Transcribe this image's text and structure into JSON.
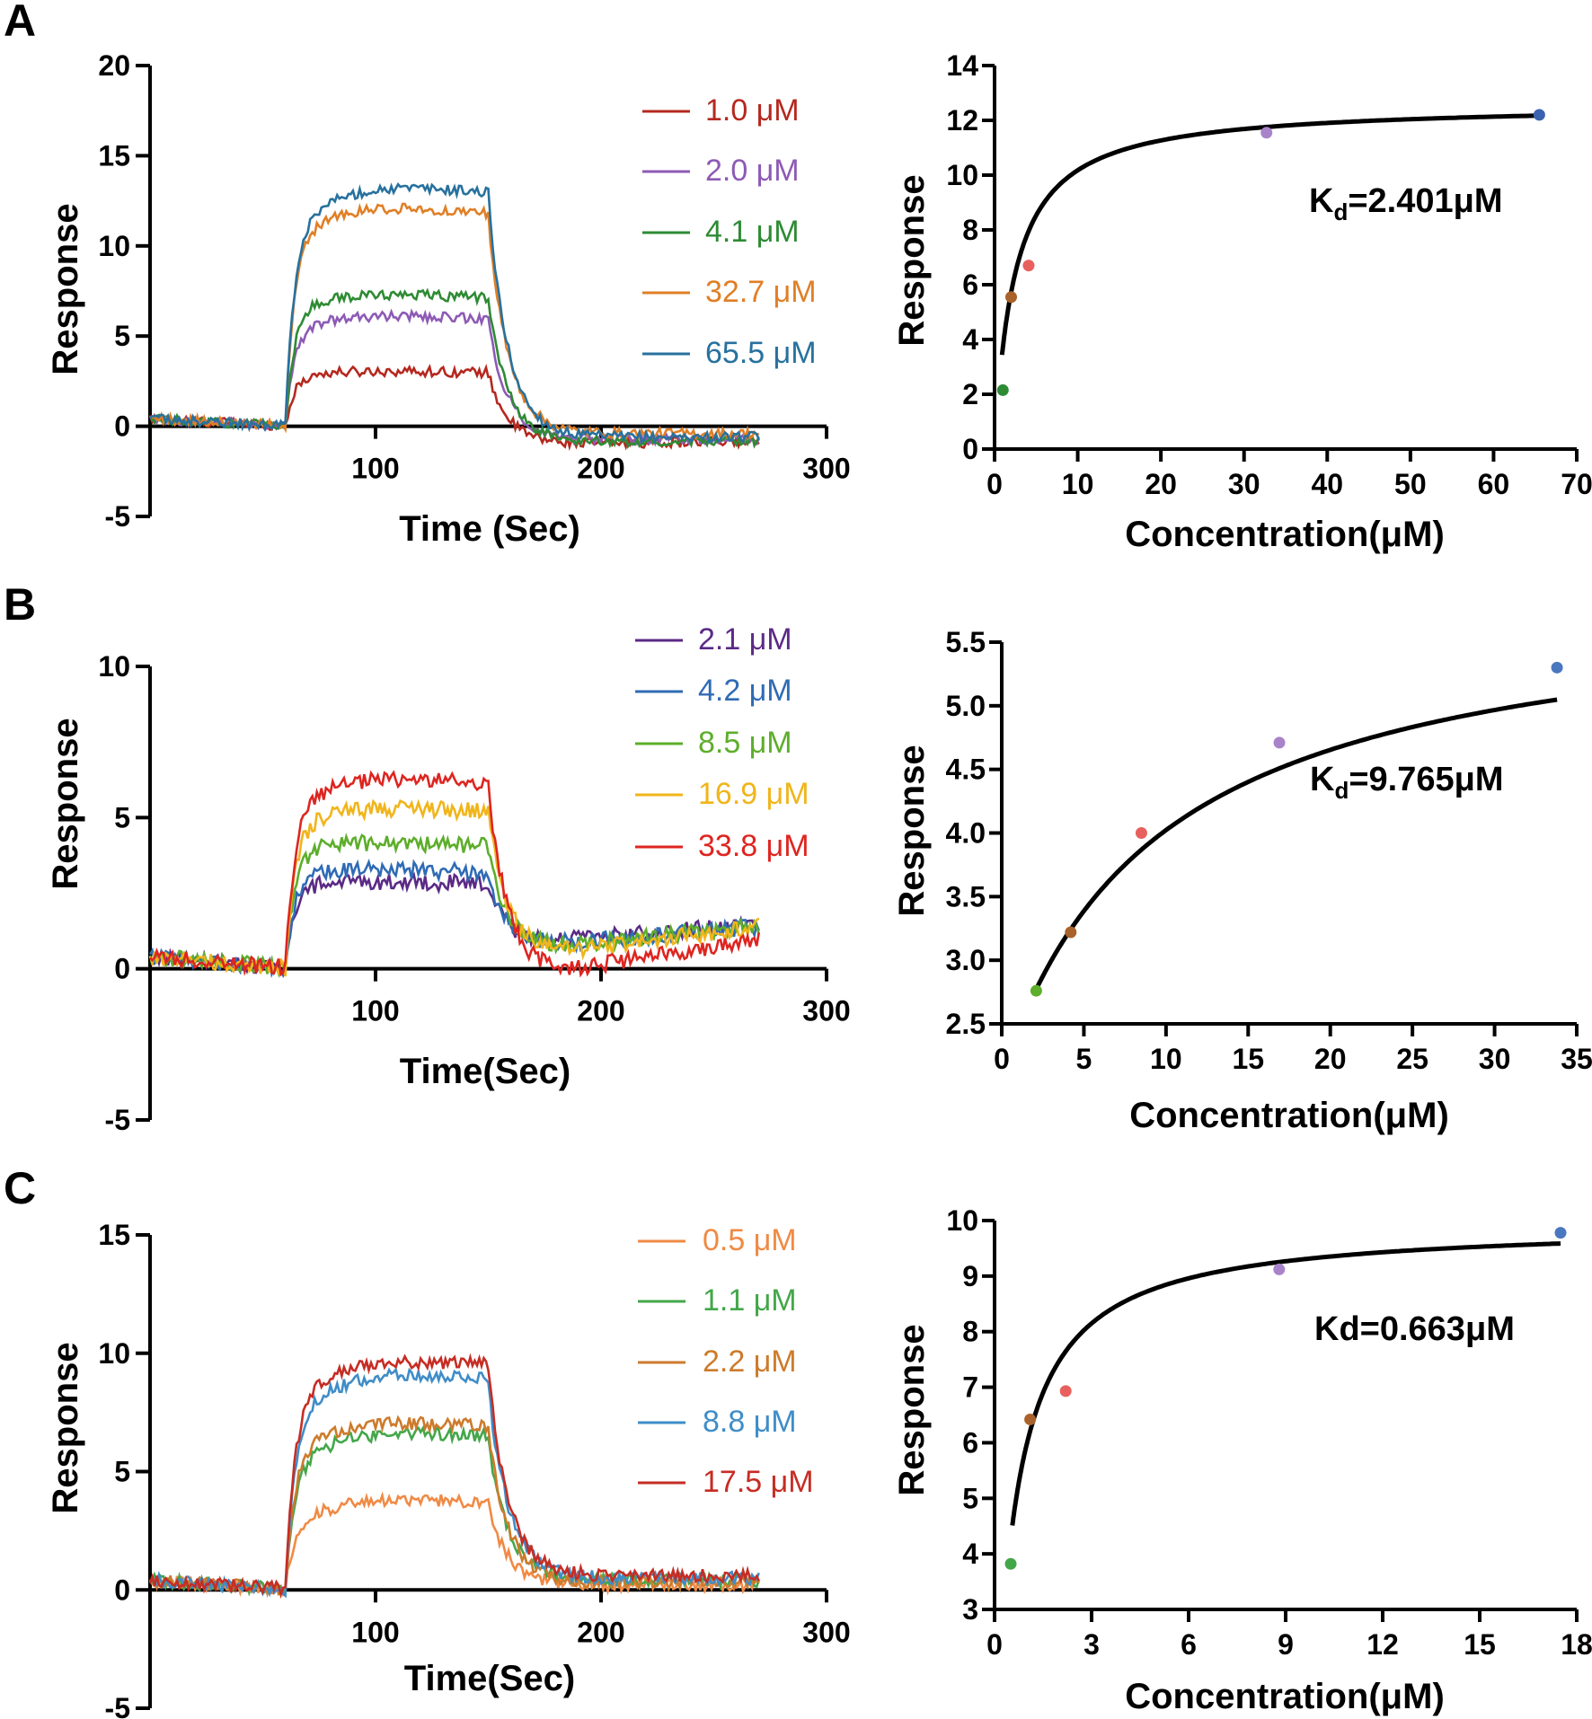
{
  "chart_data": [
    {
      "panel": "A",
      "sensorgram": {
        "type": "line",
        "xlabel": "Time (Sec)",
        "ylabel": "Response",
        "xlim": [
          0,
          300
        ],
        "ylim": [
          -5,
          20
        ],
        "xticks": [
          100,
          200,
          300
        ],
        "yticks": [
          -5,
          0,
          5,
          10,
          15,
          20
        ],
        "legend_position": "top-right",
        "injection": {
          "start": 60,
          "end": 150,
          "stop": 270
        },
        "series": [
          {
            "name": "1.0 μM",
            "color": "#b5281f",
            "plateau": 2.8,
            "peak": 3.1,
            "post": -1.0,
            "drift": 0.15
          },
          {
            "name": "2.0 μM",
            "color": "#8d5ab5",
            "plateau": 5.4,
            "peak": 6.2,
            "post": -0.8,
            "drift": 0.1
          },
          {
            "name": "4.1 μM",
            "color": "#2e8b34",
            "plateau": 6.6,
            "peak": 7.4,
            "post": -0.9,
            "drift": 0.1
          },
          {
            "name": "32.7 μM",
            "color": "#e07f26",
            "plateau": 10.5,
            "peak": 12.3,
            "post": -0.4,
            "drift": 0.0
          },
          {
            "name": "65.5 μM",
            "color": "#27719e",
            "plateau": 11.0,
            "peak": 13.5,
            "post": -0.6,
            "drift": 0.0
          }
        ]
      },
      "fit": {
        "type": "scatter",
        "xlabel": "Concentration(μM)",
        "ylabel": "Response",
        "xlim": [
          0,
          70
        ],
        "ylim": [
          0,
          14
        ],
        "xticks": [
          0,
          10,
          20,
          30,
          40,
          50,
          60,
          70
        ],
        "yticks": [
          0,
          2,
          4,
          6,
          8,
          10,
          12,
          14
        ],
        "points": [
          {
            "x": 1.0,
            "y": 2.15,
            "color": "#2e8b34"
          },
          {
            "x": 2.0,
            "y": 5.55,
            "color": "#a9622b"
          },
          {
            "x": 4.1,
            "y": 6.7,
            "color": "#e8605d"
          },
          {
            "x": 32.7,
            "y": 11.55,
            "color": "#a983c9"
          },
          {
            "x": 65.5,
            "y": 12.2,
            "color": "#3b62b0"
          }
        ],
        "curve": {
          "model": "one-site",
          "Bmax": 12.62,
          "Kd": 2.401,
          "x_from": 0.9,
          "x_to": 65.5
        },
        "annotation": {
          "main": "K",
          "sub": "d",
          "tail": "=2.401μM"
        }
      }
    },
    {
      "panel": "B",
      "sensorgram": {
        "type": "line",
        "xlabel": "Time(Sec)",
        "ylabel": "Response",
        "xlim": [
          0,
          300
        ],
        "ylim": [
          -5,
          10
        ],
        "xticks": [
          100,
          200,
          300
        ],
        "yticks": [
          -5,
          0,
          5,
          10
        ],
        "legend_position": "top-right",
        "injection": {
          "start": 60,
          "end": 150,
          "stop": 270
        },
        "series": [
          {
            "name": "2.1 μM",
            "color": "#5b2a86",
            "plateau": 2.8,
            "peak": 2.9,
            "post": 0.7,
            "drift": 0.8
          },
          {
            "name": "4.2 μM",
            "color": "#2f6bb5",
            "plateau": 3.1,
            "peak": 3.3,
            "post": 0.6,
            "drift": 0.8
          },
          {
            "name": "8.5 μM",
            "color": "#5dae2b",
            "plateau": 4.0,
            "peak": 4.2,
            "post": 0.5,
            "drift": 0.9
          },
          {
            "name": "16.9 μM",
            "color": "#f0b51b",
            "plateau": 4.7,
            "peak": 5.4,
            "post": 0.2,
            "drift": 1.2
          },
          {
            "name": "33.8 μM",
            "color": "#de2520",
            "plateau": 5.3,
            "peak": 6.4,
            "post": -0.5,
            "drift": 1.5
          }
        ]
      },
      "fit": {
        "type": "scatter",
        "xlabel": "Concentration(μM)",
        "ylabel": "Response",
        "xlim": [
          0,
          35
        ],
        "ylim": [
          2.5,
          5.5
        ],
        "xticks": [
          0,
          5,
          10,
          15,
          20,
          25,
          30,
          35
        ],
        "yticks": [
          2.5,
          3.0,
          3.5,
          4.0,
          4.5,
          5.0,
          5.5
        ],
        "points": [
          {
            "x": 2.1,
            "y": 2.76,
            "color": "#5dae2b"
          },
          {
            "x": 4.2,
            "y": 3.22,
            "color": "#a9622b"
          },
          {
            "x": 8.5,
            "y": 4.0,
            "color": "#e8605d"
          },
          {
            "x": 16.9,
            "y": 4.71,
            "color": "#a983c9"
          },
          {
            "x": 33.8,
            "y": 5.3,
            "color": "#4a78c0"
          }
        ],
        "curve": {
          "model": "one-site-offset",
          "Bmax": 3.8,
          "Kd": 9.765,
          "offset": 2.1,
          "x_from": 2.1,
          "x_to": 33.8
        },
        "annotation": {
          "main": "K",
          "sub": "d",
          "tail": "=9.765μM"
        }
      }
    },
    {
      "panel": "C",
      "sensorgram": {
        "type": "line",
        "xlabel": "Time(Sec)",
        "ylabel": "Response",
        "xlim": [
          0,
          300
        ],
        "ylim": [
          -5,
          15
        ],
        "xticks": [
          100,
          200,
          300
        ],
        "yticks": [
          -5,
          0,
          5,
          10,
          15
        ],
        "legend_position": "top-right",
        "injection": {
          "start": 60,
          "end": 150,
          "stop": 270
        },
        "series": [
          {
            "name": "0.5 μM",
            "color": "#f08a45",
            "plateau": 2.8,
            "peak": 3.9,
            "post": 0.2,
            "drift": 0.0
          },
          {
            "name": "1.1 μM",
            "color": "#43a74a",
            "plateau": 5.2,
            "peak": 6.8,
            "post": 0.4,
            "drift": 0.0
          },
          {
            "name": "2.2 μM",
            "color": "#cd7b2c",
            "plateau": 5.7,
            "peak": 7.2,
            "post": 0.3,
            "drift": 0.0
          },
          {
            "name": "8.8 μM",
            "color": "#3f8dc8",
            "plateau": 7.2,
            "peak": 9.3,
            "post": 0.5,
            "drift": 0.0
          },
          {
            "name": "17.5 μM",
            "color": "#c62d24",
            "plateau": 7.8,
            "peak": 9.9,
            "post": 0.6,
            "drift": 0.0
          }
        ]
      },
      "fit": {
        "type": "scatter",
        "xlabel": "Concentration(μM)",
        "ylabel": "Response",
        "xlim": [
          0,
          18
        ],
        "ylim": [
          3,
          10
        ],
        "xticks": [
          0,
          3,
          6,
          9,
          12,
          15,
          18
        ],
        "yticks": [
          3,
          4,
          5,
          6,
          7,
          8,
          9,
          10
        ],
        "points": [
          {
            "x": 0.5,
            "y": 3.82,
            "color": "#43a74a"
          },
          {
            "x": 1.1,
            "y": 6.42,
            "color": "#a9622b"
          },
          {
            "x": 2.2,
            "y": 6.93,
            "color": "#e8605d"
          },
          {
            "x": 8.8,
            "y": 9.12,
            "color": "#a983c9"
          },
          {
            "x": 17.5,
            "y": 9.78,
            "color": "#4a78c0"
          }
        ],
        "curve": {
          "model": "one-site",
          "Bmax": 9.95,
          "Kd": 0.663,
          "x_from": 0.55,
          "x_to": 17.5
        },
        "annotation": {
          "main": "Kd=0.663μM",
          "sub": "",
          "tail": ""
        }
      }
    }
  ]
}
